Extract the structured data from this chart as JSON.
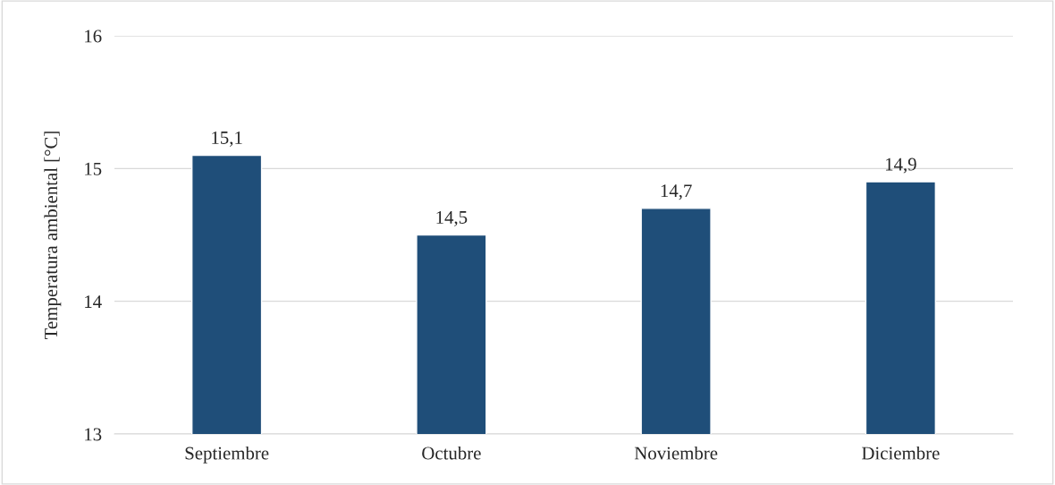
{
  "chart_data": {
    "type": "bar",
    "ylabel": "Temperatura ambiental [°C]",
    "categories": [
      "Septiembre",
      "Octubre",
      "Noviembre",
      "Diciembre"
    ],
    "values": [
      15.1,
      14.5,
      14.7,
      14.9
    ],
    "value_labels": [
      "15,1",
      "14,5",
      "14,7",
      "14,9"
    ],
    "color": "#1f4e79",
    "ylim": [
      13,
      16
    ],
    "yticks": [
      13,
      14,
      15,
      16
    ],
    "grid": "y"
  }
}
